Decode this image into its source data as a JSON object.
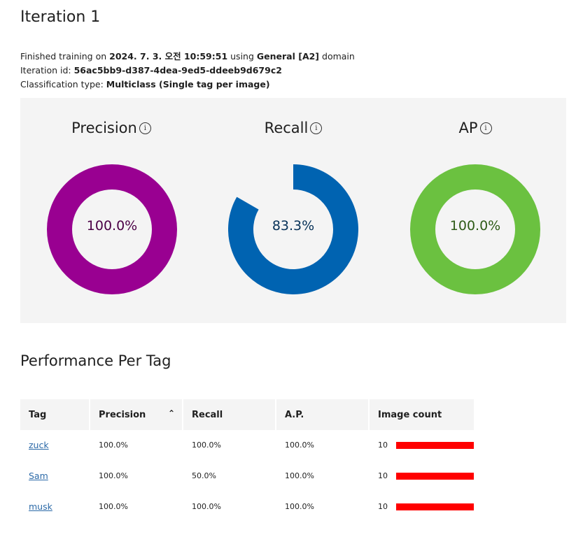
{
  "page_title": "Iteration 1",
  "meta": {
    "trained_prefix": "Finished training on ",
    "trained_date": "2024. 7. 3. 오전 10:59:51",
    "using_text": " using ",
    "domain_name": "General [A2]",
    "domain_suffix": " domain",
    "iteration_id_label": "Iteration id: ",
    "iteration_id": "56ac5bb9-d387-4dea-9ed5-ddeeb9d679c2",
    "classification_label": "Classification type: ",
    "classification_type": "Multiclass (Single tag per image)"
  },
  "metrics": [
    {
      "name": "Precision",
      "value_text": "100.0%",
      "value": 100.0,
      "color": "#990091",
      "text_color": "#4b0046"
    },
    {
      "name": "Recall",
      "value_text": "83.3%",
      "value": 83.3,
      "color": "#0063b1",
      "text_color": "#063158"
    },
    {
      "name": "AP",
      "value_text": "100.0%",
      "value": 100.0,
      "color": "#6bc140",
      "text_color": "#2e5b17"
    }
  ],
  "info_glyph": "i",
  "performance_title": "Performance Per Tag",
  "table": {
    "headers": [
      "Tag",
      "Precision",
      "Recall",
      "A.P.",
      "Image count"
    ],
    "sort_glyph": "⌃",
    "rows": [
      {
        "tag": "zuck",
        "precision": "100.0%",
        "recall": "100.0%",
        "ap": "100.0%",
        "count": "10"
      },
      {
        "tag": "Sam",
        "precision": "100.0%",
        "recall": "50.0%",
        "ap": "100.0%",
        "count": "10"
      },
      {
        "tag": "musk",
        "precision": "100.0%",
        "recall": "100.0%",
        "ap": "100.0%",
        "count": "10"
      }
    ]
  },
  "colors": {
    "bar": "#ff0000",
    "link": "#2c6aa8",
    "panel": "#f4f4f4"
  }
}
